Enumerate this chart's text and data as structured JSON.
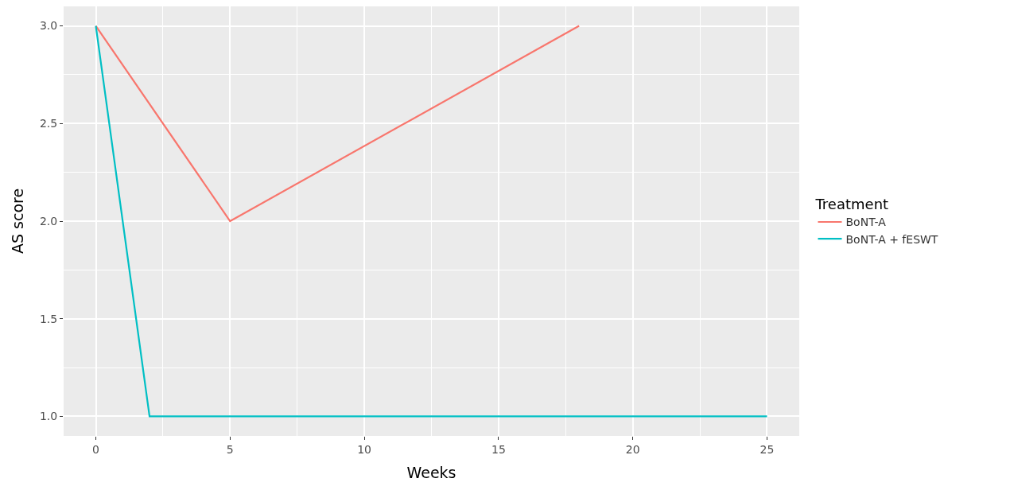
{
  "chart_data": {
    "type": "line",
    "xlabel": "Weeks",
    "ylabel": "AS score",
    "legend_title": "Treatment",
    "series": [
      {
        "name": "BoNT-A",
        "color": "#f8766d",
        "x": [
          0,
          5,
          18
        ],
        "values": [
          3,
          2,
          3
        ]
      },
      {
        "name": "BoNT-A + fESWT",
        "color": "#00bfc4",
        "x": [
          0,
          2,
          25
        ],
        "values": [
          3,
          1,
          1
        ]
      }
    ],
    "xlim": [
      -1.2,
      26.2
    ],
    "ylim": [
      0.9,
      3.1
    ],
    "xticks": [
      0,
      5,
      10,
      15,
      20,
      25
    ],
    "yticks": [
      {
        "value": 1,
        "label": "1.0"
      },
      {
        "value": 1.5,
        "label": "1.5"
      },
      {
        "value": 2,
        "label": "2.0"
      },
      {
        "value": 2.5,
        "label": "2.5"
      },
      {
        "value": 3,
        "label": "3.0"
      }
    ],
    "grid": true,
    "legend": "right",
    "marker": "none",
    "line_style": "solid"
  }
}
